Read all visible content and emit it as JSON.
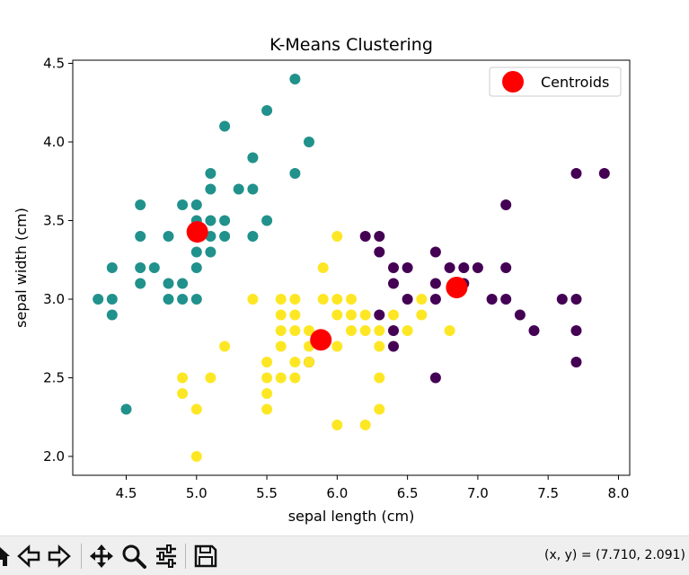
{
  "chart_data": {
    "type": "scatter",
    "title": "K-Means Clustering",
    "xlabel": "sepal length (cm)",
    "ylabel": "sepal width (cm)",
    "xlim": [
      4.12,
      8.08
    ],
    "ylim": [
      1.88,
      4.52
    ],
    "xticks": [
      "4.5",
      "5.0",
      "5.5",
      "6.0",
      "6.5",
      "7.0",
      "7.5",
      "8.0"
    ],
    "yticks": [
      "2.0",
      "2.5",
      "3.0",
      "3.5",
      "4.0",
      "4.5"
    ],
    "grid": false,
    "legend": {
      "placement": "top-right",
      "entries": [
        "Centroids"
      ]
    },
    "cluster_colors": [
      "#440154",
      "#21918c",
      "#fde725"
    ],
    "centroid_color": "#ff0000",
    "series": [
      {
        "cluster": 1,
        "color": "#21918c",
        "points": [
          [
            5.7,
            4.4
          ],
          [
            5.5,
            4.2
          ],
          [
            5.2,
            4.1
          ],
          [
            5.8,
            4.0
          ],
          [
            5.4,
            3.9
          ],
          [
            5.7,
            3.8
          ],
          [
            5.1,
            3.8
          ],
          [
            5.1,
            3.7
          ],
          [
            5.3,
            3.7
          ],
          [
            5.4,
            3.7
          ],
          [
            4.6,
            3.6
          ],
          [
            4.9,
            3.6
          ],
          [
            5.0,
            3.6
          ],
          [
            5.1,
            3.5
          ],
          [
            5.2,
            3.5
          ],
          [
            5.0,
            3.5
          ],
          [
            5.5,
            3.5
          ],
          [
            4.6,
            3.4
          ],
          [
            4.8,
            3.4
          ],
          [
            5.0,
            3.4
          ],
          [
            5.1,
            3.4
          ],
          [
            5.2,
            3.4
          ],
          [
            5.4,
            3.4
          ],
          [
            5.0,
            3.3
          ],
          [
            5.1,
            3.3
          ],
          [
            4.4,
            3.2
          ],
          [
            4.6,
            3.2
          ],
          [
            4.7,
            3.2
          ],
          [
            5.0,
            3.2
          ],
          [
            4.6,
            3.1
          ],
          [
            4.8,
            3.1
          ],
          [
            4.9,
            3.1
          ],
          [
            4.3,
            3.0
          ],
          [
            4.4,
            3.0
          ],
          [
            4.8,
            3.0
          ],
          [
            4.9,
            3.0
          ],
          [
            5.0,
            3.0
          ],
          [
            4.4,
            2.9
          ],
          [
            4.5,
            2.3
          ]
        ]
      },
      {
        "cluster": 0,
        "color": "#440154",
        "points": [
          [
            7.7,
            3.8
          ],
          [
            7.9,
            3.8
          ],
          [
            7.2,
            3.6
          ],
          [
            6.2,
            3.4
          ],
          [
            6.3,
            3.4
          ],
          [
            6.3,
            3.3
          ],
          [
            6.7,
            3.3
          ],
          [
            6.4,
            3.2
          ],
          [
            6.5,
            3.2
          ],
          [
            6.8,
            3.2
          ],
          [
            6.9,
            3.2
          ],
          [
            7.0,
            3.2
          ],
          [
            7.2,
            3.2
          ],
          [
            6.4,
            3.1
          ],
          [
            6.7,
            3.1
          ],
          [
            6.9,
            3.1
          ],
          [
            6.5,
            3.0
          ],
          [
            6.7,
            3.0
          ],
          [
            7.1,
            3.0
          ],
          [
            7.2,
            3.0
          ],
          [
            7.6,
            3.0
          ],
          [
            7.7,
            3.0
          ],
          [
            6.3,
            2.9
          ],
          [
            7.3,
            2.9
          ],
          [
            6.4,
            2.8
          ],
          [
            7.4,
            2.8
          ],
          [
            7.7,
            2.8
          ],
          [
            6.4,
            2.7
          ],
          [
            5.8,
            2.6
          ],
          [
            7.7,
            2.6
          ],
          [
            6.7,
            2.5
          ]
        ]
      },
      {
        "cluster": 2,
        "color": "#fde725",
        "points": [
          [
            6.0,
            3.4
          ],
          [
            5.9,
            3.2
          ],
          [
            5.4,
            3.0
          ],
          [
            5.6,
            3.0
          ],
          [
            5.7,
            3.0
          ],
          [
            5.9,
            3.0
          ],
          [
            6.0,
            3.0
          ],
          [
            6.1,
            3.0
          ],
          [
            6.6,
            3.0
          ],
          [
            5.6,
            2.9
          ],
          [
            5.7,
            2.9
          ],
          [
            6.0,
            2.9
          ],
          [
            6.1,
            2.9
          ],
          [
            6.2,
            2.9
          ],
          [
            6.4,
            2.9
          ],
          [
            6.6,
            2.9
          ],
          [
            5.6,
            2.8
          ],
          [
            5.7,
            2.8
          ],
          [
            5.8,
            2.8
          ],
          [
            6.1,
            2.8
          ],
          [
            6.2,
            2.8
          ],
          [
            6.3,
            2.8
          ],
          [
            6.5,
            2.8
          ],
          [
            6.8,
            2.8
          ],
          [
            5.2,
            2.7
          ],
          [
            5.6,
            2.7
          ],
          [
            5.8,
            2.7
          ],
          [
            6.0,
            2.7
          ],
          [
            6.3,
            2.7
          ],
          [
            5.5,
            2.6
          ],
          [
            5.7,
            2.6
          ],
          [
            5.8,
            2.6
          ],
          [
            4.9,
            2.5
          ],
          [
            5.1,
            2.5
          ],
          [
            5.5,
            2.5
          ],
          [
            5.6,
            2.5
          ],
          [
            5.7,
            2.5
          ],
          [
            6.3,
            2.5
          ],
          [
            4.9,
            2.4
          ],
          [
            5.5,
            2.4
          ],
          [
            5.0,
            2.3
          ],
          [
            5.5,
            2.3
          ],
          [
            6.3,
            2.3
          ],
          [
            6.0,
            2.2
          ],
          [
            6.2,
            2.2
          ],
          [
            5.0,
            2.0
          ]
        ]
      }
    ],
    "centroids": [
      {
        "name": "Centroids",
        "x": 5.006,
        "y": 3.428
      },
      {
        "name": "Centroids",
        "x": 6.85,
        "y": 3.074
      },
      {
        "name": "Centroids",
        "x": 5.884,
        "y": 2.741
      }
    ]
  },
  "toolbar": {
    "buttons": [
      "home-icon",
      "back-icon",
      "forward-icon",
      "pan-icon",
      "zoom-icon",
      "configure-subplots-icon",
      "save-icon"
    ],
    "coords_readout": "(x, y) = (7.710, 2.091)"
  }
}
